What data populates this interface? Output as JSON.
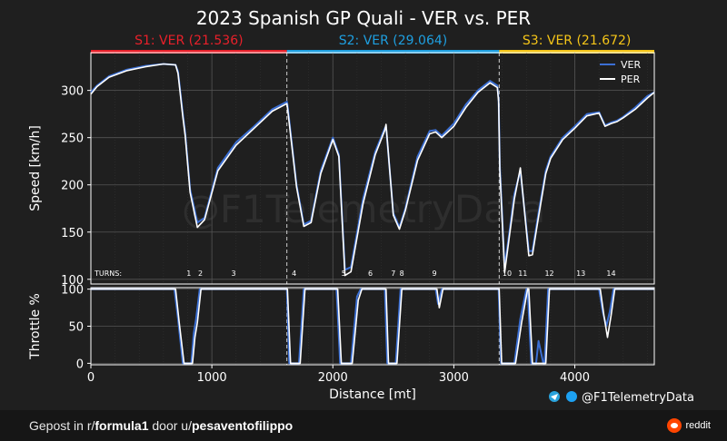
{
  "title": "2023 Spanish GP Quali - VER vs. PER",
  "sectors": [
    {
      "label": "S1: VER (21.536)",
      "color": "#e8202a",
      "start": 0,
      "end": 1620
    },
    {
      "label": "S2: VER (29.064)",
      "color": "#1e9fe0",
      "start": 1620,
      "end": 3375
    },
    {
      "label": "S3: VER (21.672)",
      "color": "#f5c518",
      "start": 3375,
      "end": 4657
    }
  ],
  "turns_label": "TURNS:",
  "turns": [
    {
      "label": "1",
      "x": 810
    },
    {
      "label": "2",
      "x": 905
    },
    {
      "label": "3",
      "x": 1180
    },
    {
      "label": "4",
      "x": 1680
    },
    {
      "label": "5",
      "x": 2090
    },
    {
      "label": "6",
      "x": 2310
    },
    {
      "label": "7",
      "x": 2500
    },
    {
      "label": "8",
      "x": 2570
    },
    {
      "label": "9",
      "x": 2840
    },
    {
      "label": "10",
      "x": 3440
    },
    {
      "label": "11",
      "x": 3570
    },
    {
      "label": "12",
      "x": 3790
    },
    {
      "label": "13",
      "x": 4050
    },
    {
      "label": "14",
      "x": 4300
    }
  ],
  "watermark": "@F1TelemetryData",
  "credit": "@F1TelemetryData",
  "footer": {
    "prefix": "Gepost in r/",
    "sub": "formula1",
    "middle": " door u/",
    "user": "pesaventofilippo",
    "brand": "reddit"
  },
  "colors": {
    "VER": "#3b6fd4",
    "PER": "#ffffff",
    "background": "#1f1f1f"
  },
  "chart_data": [
    {
      "type": "line",
      "ylabel": "Speed [km/h]",
      "ylim": [
        95,
        340
      ],
      "yticks": [
        100,
        150,
        200,
        250,
        300
      ],
      "xlim": [
        0,
        4657
      ],
      "grid": true,
      "legend": "top-right",
      "series": [
        {
          "name": "VER",
          "x": [
            0,
            50,
            150,
            300,
            450,
            600,
            700,
            720,
            760,
            780,
            820,
            880,
            940,
            1050,
            1200,
            1350,
            1500,
            1620,
            1625,
            1700,
            1760,
            1820,
            1900,
            2000,
            2050,
            2100,
            2150,
            2250,
            2350,
            2430,
            2440,
            2500,
            2550,
            2600,
            2700,
            2800,
            2850,
            2900,
            3000,
            3100,
            3200,
            3300,
            3360,
            3370,
            3380,
            3420,
            3460,
            3500,
            3550,
            3620,
            3650,
            3700,
            3760,
            3800,
            3900,
            4000,
            4100,
            4200,
            4250,
            4300,
            4350,
            4400,
            4500,
            4600,
            4657
          ],
          "y": [
            298,
            305,
            315,
            322,
            326,
            328,
            327,
            320,
            275,
            255,
            195,
            160,
            165,
            218,
            245,
            262,
            280,
            288,
            285,
            200,
            158,
            162,
            215,
            250,
            232,
            110,
            113,
            185,
            235,
            260,
            262,
            170,
            155,
            175,
            230,
            257,
            258,
            252,
            265,
            285,
            300,
            310,
            305,
            290,
            220,
            113,
            150,
            190,
            215,
            130,
            130,
            170,
            215,
            230,
            250,
            262,
            275,
            277,
            263,
            266,
            268,
            272,
            282,
            294,
            298
          ]
        },
        {
          "name": "PER",
          "x": [
            0,
            50,
            150,
            300,
            450,
            600,
            700,
            720,
            760,
            780,
            820,
            880,
            940,
            1050,
            1200,
            1350,
            1500,
            1620,
            1625,
            1700,
            1760,
            1820,
            1900,
            2000,
            2050,
            2100,
            2150,
            2250,
            2350,
            2430,
            2440,
            2500,
            2550,
            2600,
            2700,
            2800,
            2850,
            2900,
            3000,
            3100,
            3200,
            3300,
            3360,
            3370,
            3380,
            3420,
            3460,
            3500,
            3550,
            3620,
            3650,
            3700,
            3760,
            3800,
            3900,
            4000,
            4100,
            4200,
            4250,
            4300,
            4350,
            4400,
            4500,
            4600,
            4657
          ],
          "y": [
            296,
            304,
            314,
            321,
            325,
            328,
            327,
            318,
            272,
            252,
            192,
            155,
            163,
            215,
            242,
            260,
            278,
            286,
            282,
            198,
            156,
            160,
            212,
            248,
            230,
            104,
            108,
            180,
            232,
            258,
            264,
            168,
            153,
            173,
            226,
            254,
            256,
            250,
            262,
            282,
            298,
            308,
            303,
            288,
            216,
            107,
            146,
            185,
            218,
            125,
            126,
            166,
            212,
            228,
            248,
            260,
            273,
            276,
            262,
            265,
            267,
            271,
            280,
            292,
            298
          ]
        }
      ]
    },
    {
      "type": "line",
      "ylabel": "Throttle %",
      "ylim": [
        -2,
        102
      ],
      "yticks": [
        0,
        50,
        100
      ],
      "xlim": [
        0,
        4657
      ],
      "xlabel": "Distance [mt]",
      "xticks": [
        0,
        1000,
        2000,
        3000,
        4000
      ],
      "grid": true,
      "series": [
        {
          "name": "VER",
          "x": [
            0,
            690,
            720,
            760,
            800,
            830,
            850,
            870,
            900,
            940,
            1620,
            1640,
            1680,
            1720,
            1760,
            1800,
            2030,
            2060,
            2100,
            2150,
            2200,
            2230,
            2430,
            2450,
            2480,
            2520,
            2560,
            2600,
            2850,
            2870,
            2900,
            3370,
            3390,
            3420,
            3460,
            3500,
            3550,
            3600,
            3610,
            3640,
            3680,
            3700,
            3740,
            3750,
            3780,
            3800,
            4200,
            4230,
            4260,
            4290,
            4320,
            4657
          ],
          "y": [
            100,
            100,
            60,
            0,
            0,
            0,
            40,
            60,
            100,
            100,
            100,
            0,
            0,
            0,
            100,
            100,
            100,
            0,
            0,
            0,
            90,
            100,
            100,
            0,
            0,
            0,
            100,
            100,
            100,
            80,
            100,
            100,
            0,
            0,
            0,
            0,
            60,
            100,
            100,
            0,
            0,
            30,
            0,
            0,
            100,
            100,
            100,
            70,
            50,
            70,
            100,
            100
          ]
        },
        {
          "name": "PER",
          "x": [
            0,
            700,
            730,
            770,
            810,
            840,
            860,
            880,
            910,
            950,
            1625,
            1650,
            1690,
            1730,
            1770,
            1810,
            2040,
            2070,
            2110,
            2160,
            2210,
            2240,
            2440,
            2460,
            2490,
            2530,
            2570,
            2610,
            2860,
            2880,
            2910,
            3375,
            3395,
            3430,
            3470,
            3510,
            3560,
            3610,
            3620,
            3650,
            3690,
            3710,
            3750,
            3760,
            3790,
            3810,
            4210,
            4240,
            4270,
            4300,
            4330,
            4657
          ],
          "y": [
            100,
            100,
            55,
            0,
            0,
            0,
            35,
            55,
            100,
            100,
            100,
            0,
            0,
            0,
            100,
            100,
            100,
            0,
            0,
            0,
            85,
            100,
            100,
            0,
            0,
            0,
            100,
            100,
            100,
            75,
            100,
            100,
            0,
            0,
            0,
            0,
            55,
            100,
            100,
            0,
            0,
            0,
            0,
            0,
            100,
            100,
            100,
            65,
            35,
            65,
            100,
            100
          ]
        }
      ]
    }
  ]
}
